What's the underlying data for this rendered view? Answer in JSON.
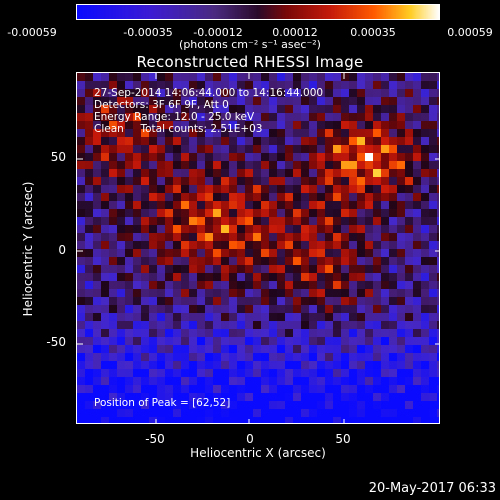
{
  "colorbar": {
    "ticks": [
      "-0.00059",
      "-0.00035",
      "-0.00012",
      "0.00012",
      "0.00035",
      "0.00059"
    ],
    "unit": "(photons cm⁻² s⁻¹ asec⁻²)"
  },
  "title": "Reconstructed RHESSI Image",
  "info": {
    "time": "27-Sep-2014 14:06:44.000 to 14:16:44.000",
    "detectors": "Detectors: 3F 6F 9F, Att 0",
    "energy": "Energy Range: 12.0 - 25.0 keV",
    "clean": "Clean     Total counts: 2.51E+03"
  },
  "peak": "Position of Peak = [62,52]",
  "axes": {
    "xlabel": "Heliocentric X (arcsec)",
    "ylabel": "Heliocentric Y (arcsec)",
    "xticks": [
      "-50",
      "0",
      "50"
    ],
    "yticks": [
      "50",
      "0",
      "-50"
    ]
  },
  "datestamp": "20-May-2017 06:33"
}
